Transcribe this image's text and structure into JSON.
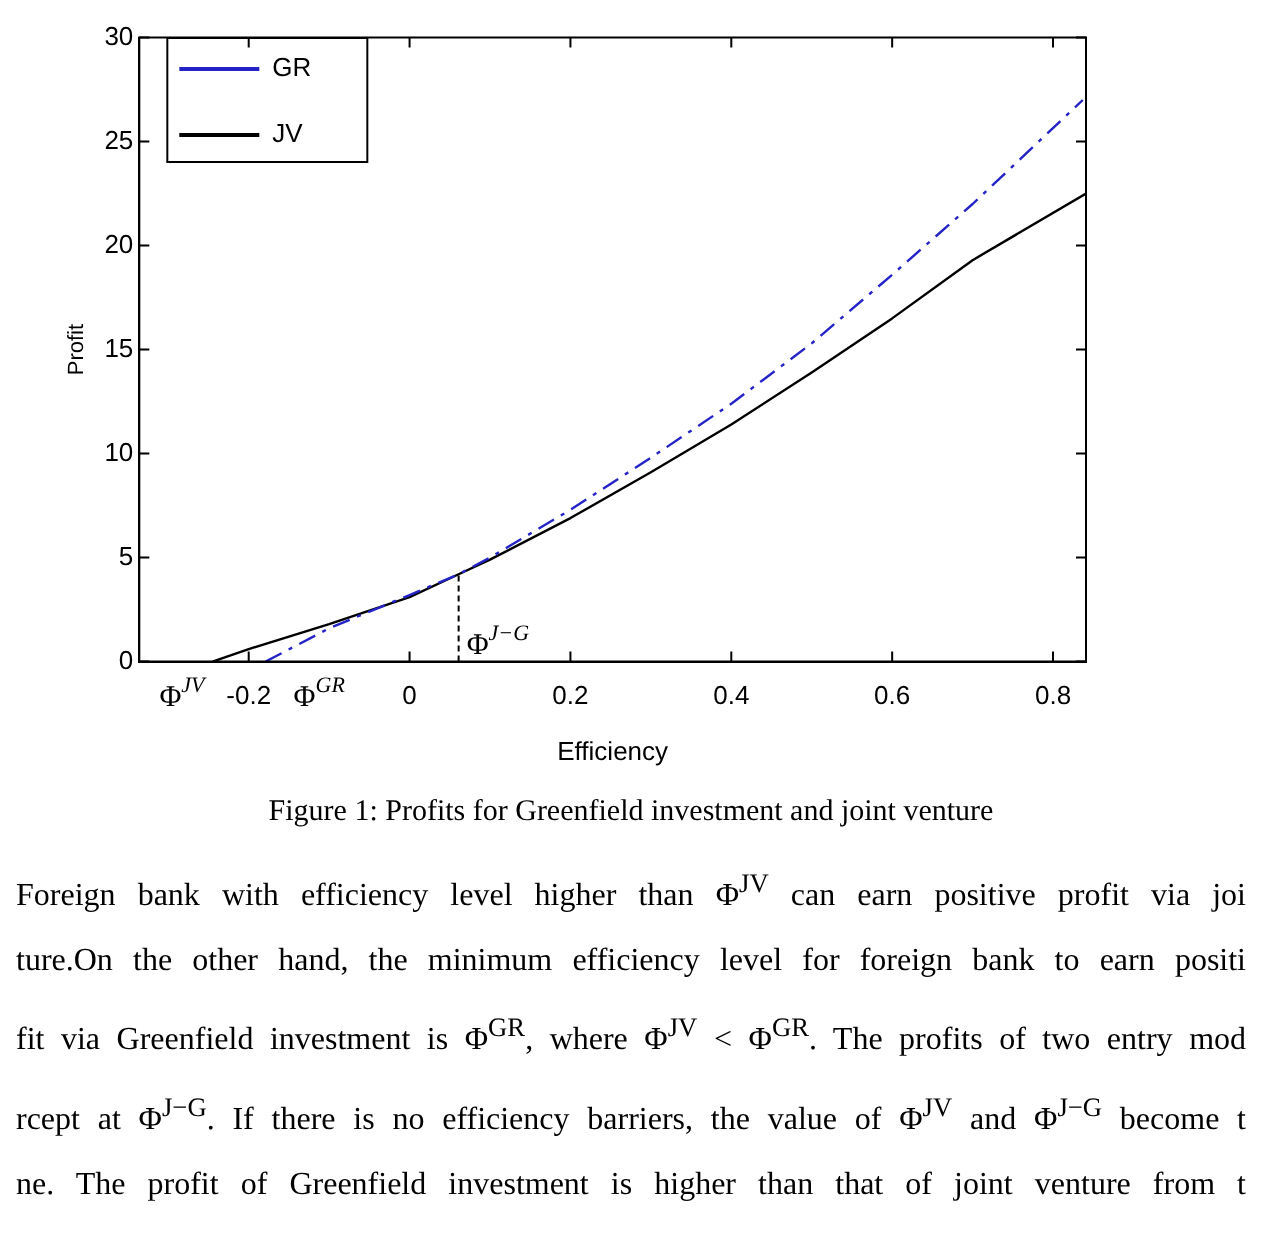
{
  "chart_data": {
    "type": "line",
    "xlabel": "Efficiency",
    "ylabel": "Profit",
    "xlim": [
      -0.336,
      0.841
    ],
    "xticks": [
      -0.2,
      0,
      0.2,
      0.4,
      0.6,
      0.8
    ],
    "ylim": [
      0,
      30
    ],
    "yticks": [
      0,
      5,
      10,
      15,
      20,
      25,
      30
    ],
    "grid": false,
    "legend": "top left",
    "marker": "none",
    "series": [
      {
        "name": "GR",
        "color": "#2323c8",
        "line_style": "dashed",
        "x": [
          -0.179,
          -0.1,
          0,
          0.061,
          0.1,
          0.2,
          0.3,
          0.4,
          0.5,
          0.6,
          0.7,
          0.837
        ],
        "values": [
          0,
          1.6,
          3.2,
          4.2,
          5.0,
          7.3,
          9.8,
          12.4,
          15.3,
          18.6,
          22.0,
          27.0
        ]
      },
      {
        "name": "JV",
        "color": "#000000",
        "line_style": "solid",
        "x": [
          -0.245,
          -0.2,
          -0.1,
          0,
          0.061,
          0.1,
          0.2,
          0.3,
          0.4,
          0.5,
          0.6,
          0.7,
          0.841
        ],
        "values": [
          0,
          0.6,
          1.8,
          3.1,
          4.2,
          4.9,
          6.9,
          9.1,
          11.4,
          13.9,
          16.5,
          19.3,
          22.5
        ]
      }
    ],
    "ref_lines": [
      {
        "axis": "x",
        "value": 0.061,
        "label": "Φ$^{J−G}$",
        "line_style": "dashed",
        "color": "#000000"
      }
    ],
    "annotations": [
      {
        "text": "Φ$^{JV}$",
        "x": -0.245,
        "y": 0
      },
      {
        "text": "Φ$^{GR}$",
        "x": -0.179,
        "y": 0
      },
      "Figure 1: Profits for Greenfield investment and joint venture",
      "Foreign bank with efficiency level higher than Φ$^{JV}$ can earn positive profit via joi",
      "ture.On the other hand, the minimum efficiency level for foreign bank to earn positi",
      "fit via Greenfield investment is Φ$^{GR}$, where Φ$^{JV}$ < Φ$^{GR}$. The profits of two entry mod",
      "rcept at Φ$^{J−G}$. If there is no efficiency barriers, the value of Φ$^{JV}$ and Φ$^{J−G}$ become t",
      "ne. The profit of Greenfield investment is higher than that of joint venture from t"
    ]
  }
}
